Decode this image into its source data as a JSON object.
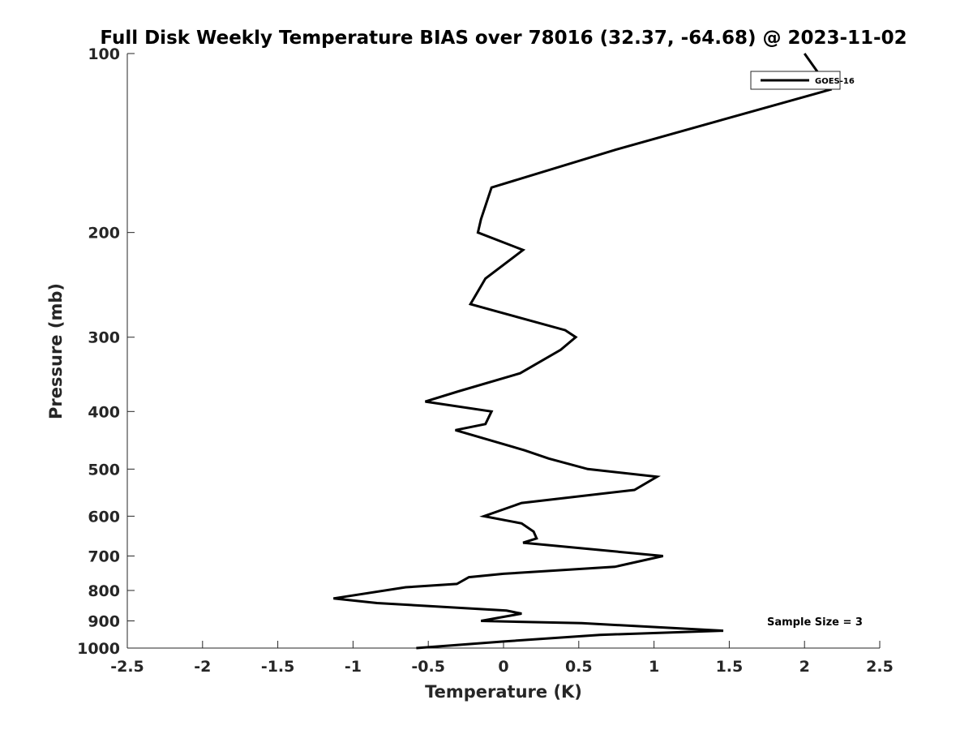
{
  "chart_data": {
    "type": "line",
    "title": "Full Disk Weekly Temperature BIAS over 78016 (32.37, -64.68) @ 2023-11-02",
    "xlabel": "Temperature (K)",
    "ylabel": "Pressure (mb)",
    "xlim": [
      -2.5,
      2.5
    ],
    "ylim": [
      100,
      1000
    ],
    "y_scale": "log",
    "y_reversed": true,
    "grid": false,
    "x_ticks": [
      -2.5,
      -2,
      -1.5,
      -1,
      -0.5,
      0,
      0.5,
      1,
      1.5,
      2,
      2.5
    ],
    "x_tick_labels": [
      "-2.5",
      "-2",
      "-1.5",
      "-1",
      "-0.5",
      "0",
      "0.5",
      "1",
      "1.5",
      "2",
      "2.5"
    ],
    "y_ticks": [
      100,
      200,
      300,
      400,
      500,
      600,
      700,
      800,
      900,
      1000
    ],
    "y_tick_labels": [
      "100",
      "200",
      "300",
      "400",
      "500",
      "600",
      "700",
      "800",
      "900",
      "1000"
    ],
    "legend": {
      "position": "top-right",
      "entries": [
        "GOES-16"
      ]
    },
    "annotation": "Sample Size = 3",
    "series": [
      {
        "name": "GOES-16",
        "color": "#000000",
        "x": [
          2.0,
          2.17,
          0.75,
          -0.08,
          -0.15,
          -0.17,
          0.13,
          -0.12,
          -0.22,
          0.41,
          0.48,
          0.38,
          0.11,
          -0.3,
          -0.52,
          -0.08,
          -0.12,
          -0.32,
          0.14,
          0.3,
          0.56,
          1.02,
          0.87,
          0.12,
          -0.13,
          0.12,
          0.2,
          0.22,
          0.13,
          1.06,
          0.74,
          0.0,
          -0.23,
          -0.31,
          -0.65,
          -1.13,
          -0.84,
          0.02,
          0.12,
          -0.15,
          0.52,
          1.46,
          0.64,
          0.0,
          -0.58
        ],
        "y": [
          100,
          115,
          145,
          168,
          190,
          200,
          214,
          239,
          264,
          292,
          300,
          315,
          345,
          370,
          385,
          400,
          420,
          430,
          465,
          480,
          500,
          515,
          542,
          570,
          600,
          617,
          637,
          654,
          665,
          700,
          730,
          750,
          760,
          780,
          790,
          825,
          840,
          865,
          875,
          900,
          908,
          935,
          950,
          975,
          1000
        ]
      }
    ]
  }
}
